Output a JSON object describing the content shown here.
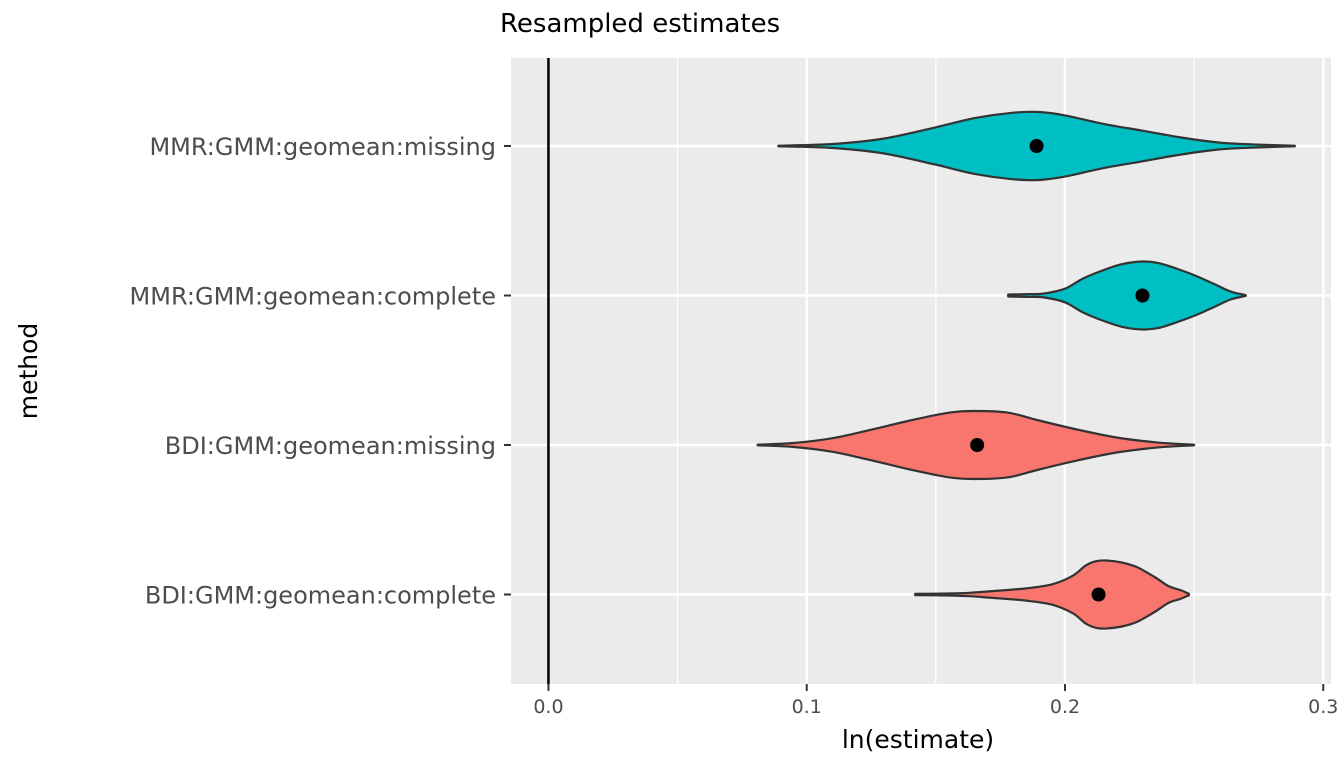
{
  "chart_data": {
    "type": "violin",
    "title": "Resampled estimates",
    "xlabel": "ln(estimate)",
    "ylabel": "method",
    "xlim": [
      -0.0145,
      0.303
    ],
    "xticks": [
      "0.0",
      "0.1",
      "0.2",
      "0.3"
    ],
    "xtick_values": [
      0.0,
      0.1,
      0.2,
      0.3
    ],
    "reference_line_x": 0.0,
    "grid": true,
    "background": "#ebebeb",
    "categories": [
      "MMR:GMM:geomean:missing",
      "MMR:GMM:geomean:complete",
      "BDI:GMM:geomean:missing",
      "BDI:GMM:geomean:complete"
    ],
    "series": [
      {
        "category": "MMR:GMM:geomean:missing",
        "color": "#00bfc4",
        "point": 0.189,
        "min": 0.089,
        "max": 0.289,
        "profile": [
          [
            0.089,
            0.01
          ],
          [
            0.11,
            0.06
          ],
          [
            0.13,
            0.22
          ],
          [
            0.15,
            0.55
          ],
          [
            0.165,
            0.82
          ],
          [
            0.18,
            0.98
          ],
          [
            0.19,
            1.0
          ],
          [
            0.2,
            0.9
          ],
          [
            0.215,
            0.65
          ],
          [
            0.23,
            0.45
          ],
          [
            0.245,
            0.25
          ],
          [
            0.26,
            0.1
          ],
          [
            0.275,
            0.04
          ],
          [
            0.289,
            0.01
          ]
        ]
      },
      {
        "category": "MMR:GMM:geomean:complete",
        "color": "#00bfc4",
        "point": 0.23,
        "min": 0.178,
        "max": 0.27,
        "profile": [
          [
            0.178,
            0.03
          ],
          [
            0.186,
            0.04
          ],
          [
            0.192,
            0.06
          ],
          [
            0.2,
            0.2
          ],
          [
            0.207,
            0.5
          ],
          [
            0.214,
            0.72
          ],
          [
            0.222,
            0.92
          ],
          [
            0.23,
            1.0
          ],
          [
            0.236,
            0.96
          ],
          [
            0.242,
            0.82
          ],
          [
            0.25,
            0.6
          ],
          [
            0.258,
            0.33
          ],
          [
            0.264,
            0.12
          ],
          [
            0.27,
            0.01
          ]
        ]
      },
      {
        "category": "BDI:GMM:geomean:missing",
        "color": "#f8766d",
        "point": 0.166,
        "min": 0.081,
        "max": 0.25,
        "profile": [
          [
            0.081,
            0.01
          ],
          [
            0.095,
            0.06
          ],
          [
            0.11,
            0.2
          ],
          [
            0.125,
            0.45
          ],
          [
            0.14,
            0.72
          ],
          [
            0.155,
            0.95
          ],
          [
            0.165,
            1.0
          ],
          [
            0.178,
            0.95
          ],
          [
            0.19,
            0.72
          ],
          [
            0.205,
            0.45
          ],
          [
            0.22,
            0.22
          ],
          [
            0.235,
            0.08
          ],
          [
            0.25,
            0.01
          ]
        ]
      },
      {
        "category": "BDI:GMM:geomean:complete",
        "color": "#f8766d",
        "point": 0.213,
        "min": 0.142,
        "max": 0.248,
        "profile": [
          [
            0.142,
            0.02
          ],
          [
            0.155,
            0.03
          ],
          [
            0.163,
            0.05
          ],
          [
            0.172,
            0.1
          ],
          [
            0.185,
            0.18
          ],
          [
            0.195,
            0.3
          ],
          [
            0.203,
            0.55
          ],
          [
            0.208,
            0.85
          ],
          [
            0.212,
            0.98
          ],
          [
            0.216,
            1.0
          ],
          [
            0.222,
            0.94
          ],
          [
            0.228,
            0.8
          ],
          [
            0.235,
            0.5
          ],
          [
            0.24,
            0.25
          ],
          [
            0.245,
            0.12
          ],
          [
            0.248,
            0.02
          ]
        ]
      }
    ]
  }
}
